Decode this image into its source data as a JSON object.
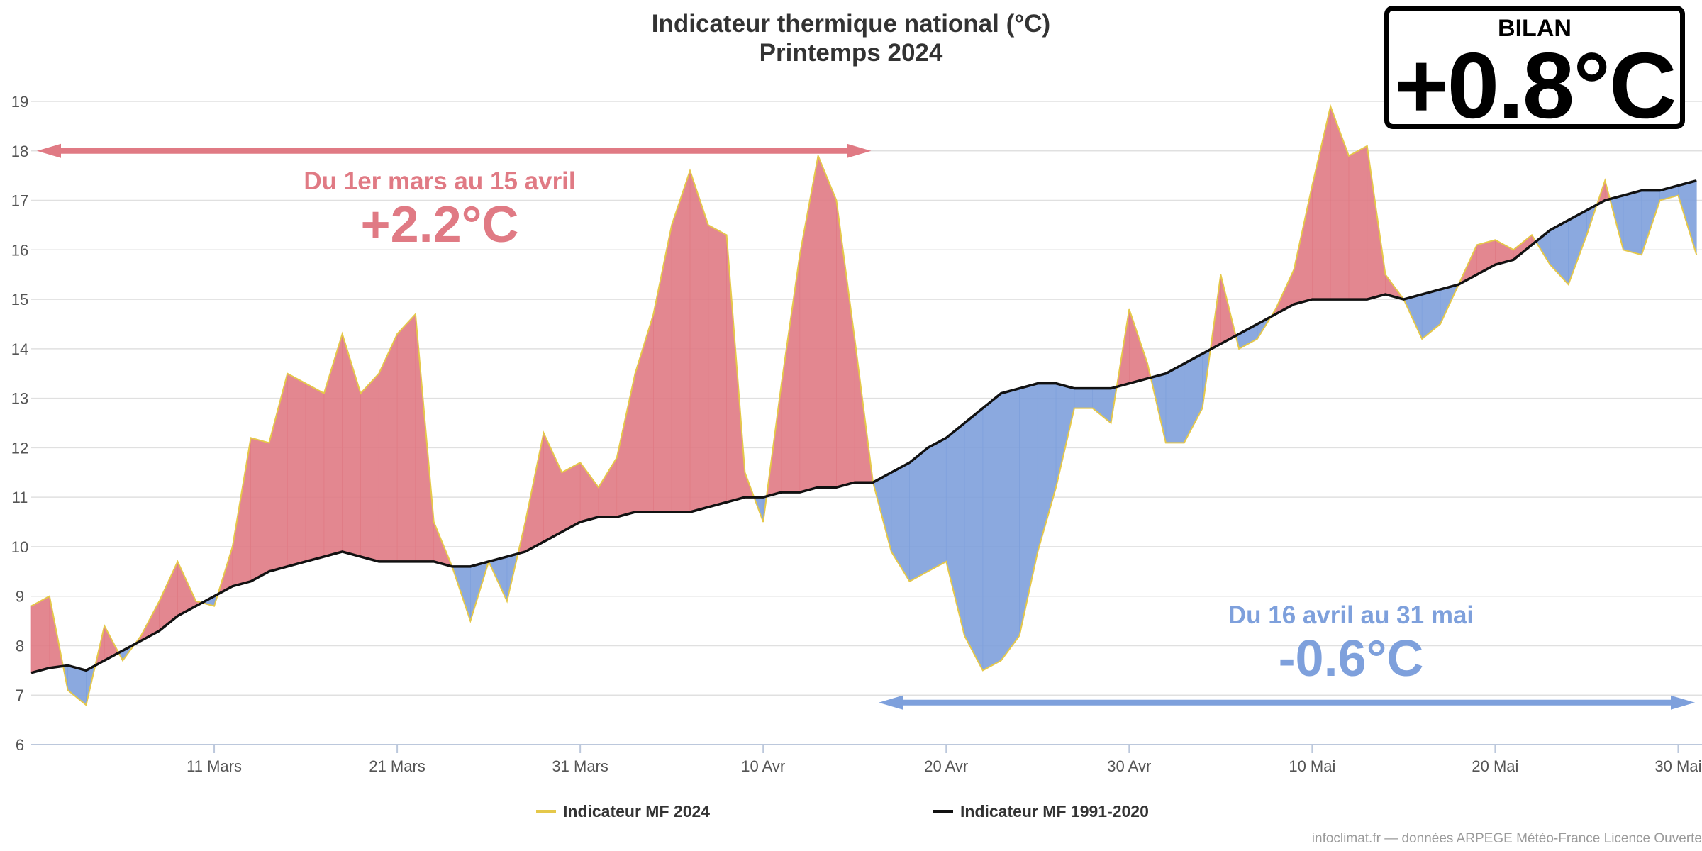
{
  "header": {
    "title": "Indicateur thermique national (°C)",
    "subtitle": "Printemps 2024"
  },
  "bilan": {
    "label": "BILAN",
    "value": "+0.8°C"
  },
  "periods": [
    {
      "label": "Du 1er mars au 15 avril",
      "value": "+2.2°C",
      "color": "#e07a84"
    },
    {
      "label": "Du 16 avril au 31 mai",
      "value": "-0.6°C",
      "color": "#7ea0dc"
    }
  ],
  "legend": {
    "series_a": "Indicateur MF 2024",
    "series_b": "Indicateur MF 1991-2020"
  },
  "credit": "infoclimat.fr — données ARPEGE Météo-France Licence Ouverte",
  "colors": {
    "above": "#e07a84",
    "below": "#7ea0dc",
    "line_2024": "#e5c84a",
    "line_normal": "#111111",
    "grid": "#e0e0e0"
  },
  "chart_data": {
    "type": "area",
    "title": "Indicateur thermique national (°C)",
    "subtitle": "Printemps 2024",
    "xlabel": "",
    "ylabel": "",
    "ylim": [
      6,
      19
    ],
    "y_ticks": [
      6,
      7,
      8,
      9,
      10,
      11,
      12,
      13,
      14,
      15,
      16,
      17,
      18,
      19
    ],
    "x_ticks": [
      {
        "day": 11,
        "label": "11 Mars"
      },
      {
        "day": 21,
        "label": "21 Mars"
      },
      {
        "day": 31,
        "label": "31 Mars"
      },
      {
        "day": 41,
        "label": "10 Avr"
      },
      {
        "day": 51,
        "label": "20 Avr"
      },
      {
        "day": 61,
        "label": "30 Avr"
      },
      {
        "day": 71,
        "label": "10 Mai"
      },
      {
        "day": 81,
        "label": "20 Mai"
      },
      {
        "day": 91,
        "label": "30 Mai"
      }
    ],
    "x_start_day": 1,
    "x_end_day": 92,
    "series": [
      {
        "name": "Indicateur MF 2024",
        "values": [
          8.8,
          9.0,
          7.1,
          6.8,
          8.4,
          7.7,
          8.2,
          8.9,
          9.7,
          8.9,
          8.8,
          10.0,
          12.2,
          12.1,
          13.5,
          13.3,
          13.1,
          14.3,
          13.1,
          13.5,
          14.3,
          14.7,
          10.5,
          9.6,
          8.5,
          9.7,
          8.9,
          10.5,
          12.3,
          11.5,
          11.7,
          11.2,
          11.8,
          13.5,
          14.7,
          16.5,
          17.6,
          16.5,
          16.3,
          11.5,
          10.5,
          13.3,
          15.9,
          17.9,
          17.0,
          14.2,
          11.3,
          9.9,
          9.3,
          9.5,
          9.7,
          8.2,
          7.5,
          7.7,
          8.2,
          9.9,
          11.2,
          12.8,
          12.8,
          12.5,
          14.8,
          13.7,
          12.1,
          12.1,
          12.8,
          15.5,
          14.0,
          14.2,
          14.8,
          15.6,
          17.3,
          18.9,
          17.9,
          18.1,
          15.5,
          15.0,
          14.2,
          14.5,
          15.3,
          16.1,
          16.2,
          16.0,
          16.3,
          15.7,
          15.3,
          16.3,
          17.4,
          16.0,
          15.9,
          17.0,
          17.1,
          15.9
        ]
      },
      {
        "name": "Indicateur MF 1991-2020",
        "values": [
          7.45,
          7.55,
          7.6,
          7.5,
          7.7,
          7.9,
          8.1,
          8.3,
          8.6,
          8.8,
          9.0,
          9.2,
          9.3,
          9.5,
          9.6,
          9.7,
          9.8,
          9.9,
          9.8,
          9.7,
          9.7,
          9.7,
          9.7,
          9.6,
          9.6,
          9.7,
          9.8,
          9.9,
          10.1,
          10.3,
          10.5,
          10.6,
          10.6,
          10.7,
          10.7,
          10.7,
          10.7,
          10.8,
          10.9,
          11.0,
          11.0,
          11.1,
          11.1,
          11.2,
          11.2,
          11.3,
          11.3,
          11.5,
          11.7,
          12.0,
          12.2,
          12.5,
          12.8,
          13.1,
          13.2,
          13.3,
          13.3,
          13.2,
          13.2,
          13.2,
          13.3,
          13.4,
          13.5,
          13.7,
          13.9,
          14.1,
          14.3,
          14.5,
          14.7,
          14.9,
          15.0,
          15.0,
          15.0,
          15.0,
          15.1,
          15.0,
          15.1,
          15.2,
          15.3,
          15.5,
          15.7,
          15.8,
          16.1,
          16.4,
          16.6,
          16.8,
          17.0,
          17.1,
          17.2,
          17.2,
          17.3,
          17.4
        ]
      }
    ],
    "annotations": [
      {
        "text": "Du 1er mars au 15 avril",
        "value": "+2.2°C",
        "from_day": 1,
        "to_day": 46
      },
      {
        "text": "Du 16 avril au 31 mai",
        "value": "-0.6°C",
        "from_day": 47,
        "to_day": 92
      }
    ]
  }
}
